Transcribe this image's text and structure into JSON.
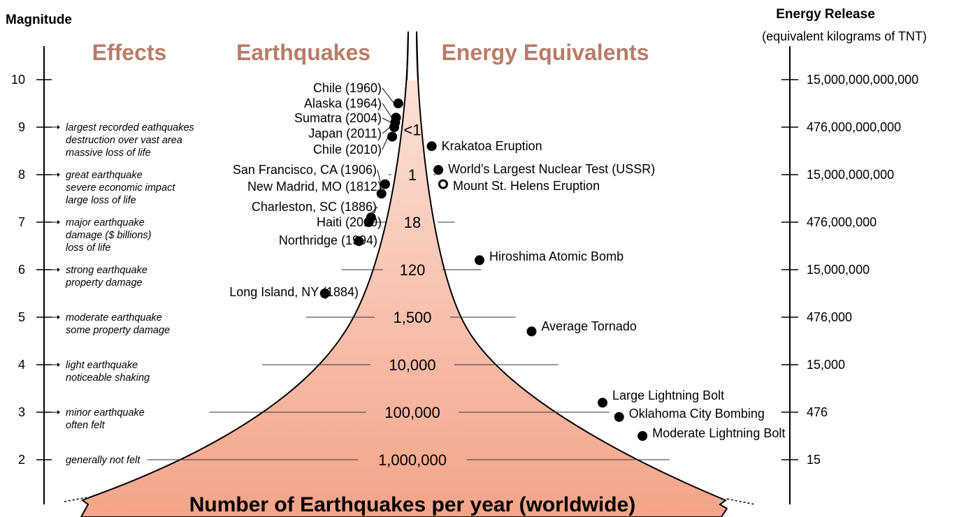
{
  "colors": {
    "header": "#b87c68",
    "funnel_top": "#fce8e0",
    "funnel_bottom": "#f4a488",
    "marker": "#000000"
  },
  "chart_data": {
    "type": "scatter",
    "left_axis": {
      "title": "Magnitude",
      "range": [
        1,
        11
      ],
      "ticks": [
        "2",
        "3",
        "4",
        "5",
        "6",
        "7",
        "8",
        "9",
        "10"
      ]
    },
    "right_axis": {
      "title": "Energy Release",
      "subtitle": "(equivalent kilograms of TNT)",
      "ticks": [
        "15",
        "476",
        "15,000",
        "476,000",
        "15,000,000",
        "476,000,000",
        "15,000,000,000",
        "476,000,000,000",
        "15,000,000,000,000"
      ]
    },
    "column_headers": {
      "effects": "Effects",
      "earthquakes": "Earthquakes",
      "energy": "Energy Equivalents"
    },
    "effects": [
      {
        "magnitude": 9,
        "lines": [
          "largest recorded eathquakes",
          "destruction over vast area",
          "massive loss of life"
        ]
      },
      {
        "magnitude": 8,
        "lines": [
          "great earthquake",
          "severe economic impact",
          "large loss of life"
        ]
      },
      {
        "magnitude": 7,
        "lines": [
          "major earthquake",
          "damage ($ billions)",
          "loss of life"
        ]
      },
      {
        "magnitude": 6,
        "lines": [
          "strong earthquake",
          "property damage"
        ]
      },
      {
        "magnitude": 5,
        "lines": [
          "moderate earthquake",
          "some property damage"
        ]
      },
      {
        "magnitude": 4,
        "lines": [
          "light earthquake",
          "noticeable shaking"
        ]
      },
      {
        "magnitude": 3,
        "lines": [
          "minor earthquake",
          "often felt"
        ]
      },
      {
        "magnitude": 2,
        "lines": [
          "generally not felt"
        ]
      }
    ],
    "frequency_per_year": [
      {
        "magnitude": 8.95,
        "count": "<1"
      },
      {
        "magnitude": 8.0,
        "count": "1"
      },
      {
        "magnitude": 7.0,
        "count": "18"
      },
      {
        "magnitude": 6.0,
        "count": "120"
      },
      {
        "magnitude": 5.0,
        "count": "1,500"
      },
      {
        "magnitude": 4.0,
        "count": "10,000"
      },
      {
        "magnitude": 3.0,
        "count": "100,000"
      },
      {
        "magnitude": 2.0,
        "count": "1,000,000"
      }
    ],
    "earthquakes": [
      {
        "label": "Chile (1960)",
        "magnitude": 9.5
      },
      {
        "label": "Alaska (1964)",
        "magnitude": 9.2
      },
      {
        "label": "Sumatra (2004)",
        "magnitude": 9.1
      },
      {
        "label": "Japan (2011)",
        "magnitude": 9.0
      },
      {
        "label": "Chile (2010)",
        "magnitude": 8.8
      },
      {
        "label": "San Francisco, CA (1906)",
        "magnitude": 7.8
      },
      {
        "label": "New Madrid, MO (1812)",
        "magnitude": 7.6
      },
      {
        "label": "Charleston, SC (1886)",
        "magnitude": 7.1
      },
      {
        "label": "Haiti (2010)",
        "magnitude": 7.0
      },
      {
        "label": "Northridge (1994)",
        "magnitude": 6.6
      },
      {
        "label": "Long Island, NY (1884)",
        "magnitude": 5.5
      }
    ],
    "energy_equivalents": [
      {
        "label": "Krakatoa Eruption",
        "magnitude": 8.6,
        "hollow": false
      },
      {
        "label": "World’s Largest Nuclear Test (USSR)",
        "magnitude": 8.1,
        "hollow": false
      },
      {
        "label": "Mount St. Helens Eruption",
        "magnitude": 7.8,
        "hollow": true
      },
      {
        "label": "Hiroshima Atomic Bomb",
        "magnitude": 6.2,
        "hollow": false
      },
      {
        "label": "Average Tornado",
        "magnitude": 4.7,
        "hollow": false
      },
      {
        "label": "Large Lightning Bolt",
        "magnitude": 3.2,
        "hollow": false
      },
      {
        "label": "Oklahoma City Bombing",
        "magnitude": 2.9,
        "hollow": false
      },
      {
        "label": "Moderate Lightning Bolt",
        "magnitude": 2.5,
        "hollow": false
      }
    ],
    "footer": "Number of Earthquakes per year (worldwide)"
  }
}
